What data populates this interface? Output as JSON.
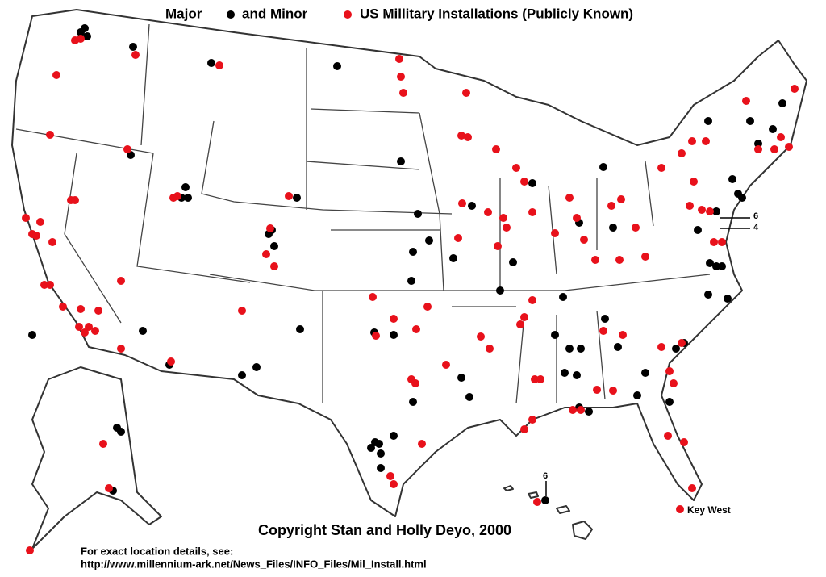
{
  "title": {
    "major": "Major",
    "minor": "and Minor",
    "rest": "US Millitary Installations (Publicly Known)"
  },
  "callouts": {
    "northeast_a": "6",
    "northeast_b": "4",
    "hawaii": "6",
    "key_west": "Key West"
  },
  "footer": {
    "copyright": "Copyright Stan and Holly Deyo, 2000",
    "details": "For exact location details, see:",
    "url": "http://www.millennium-ark.net/News_Files/INFO_Files/Mil_Install.html"
  }
}
